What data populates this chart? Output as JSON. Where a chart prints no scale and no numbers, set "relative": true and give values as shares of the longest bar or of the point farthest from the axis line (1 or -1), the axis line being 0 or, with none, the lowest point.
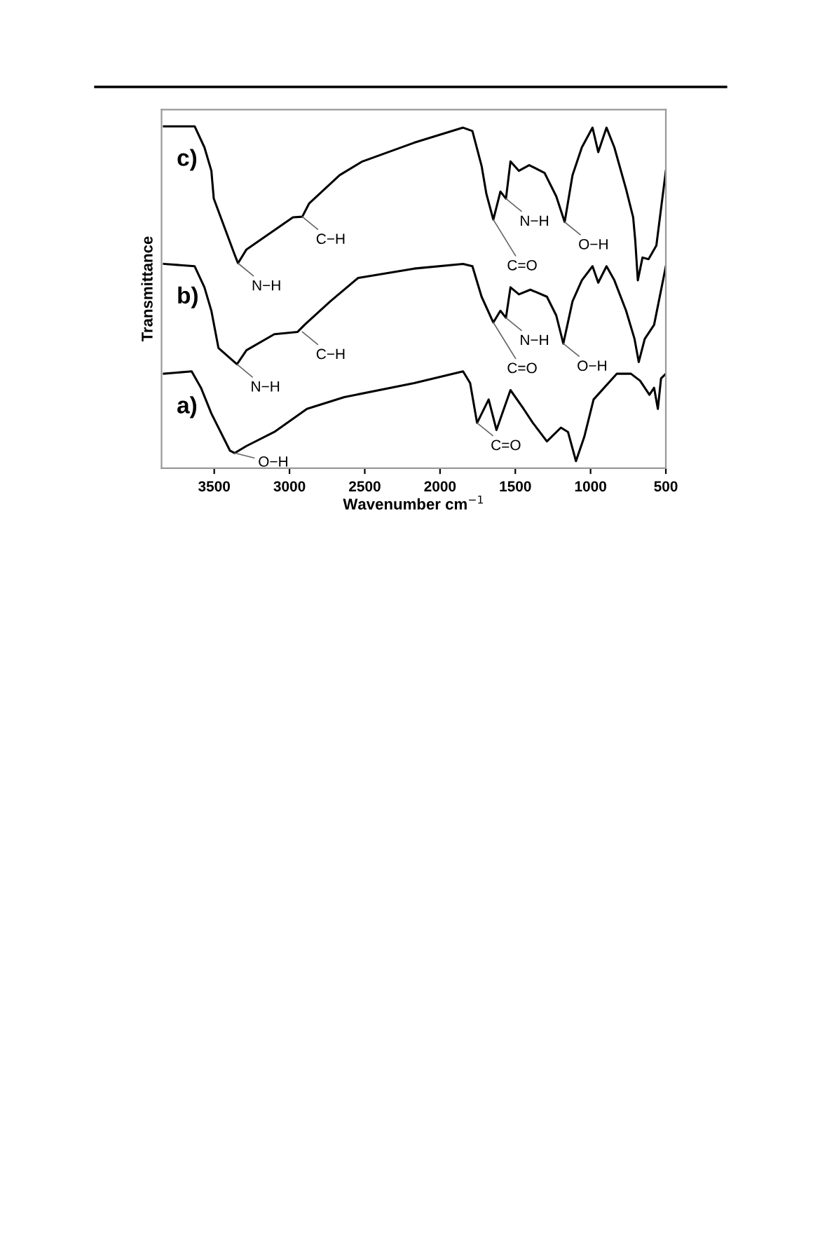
{
  "chart_data": {
    "type": "line",
    "relative": true,
    "xlabel": "Wavenumber cm$^{−1}$",
    "ylabel": "Transmittance",
    "xlim": [
      3850,
      500
    ],
    "xticks": [
      3500,
      3000,
      2500,
      2000,
      1500,
      1000,
      500
    ],
    "grid": false,
    "legend": false,
    "marker": "none",
    "line_style": "solid",
    "series": [
      {
        "name": "a)",
        "color": "#000000",
        "x": [
          3834,
          3650,
          3588,
          3519,
          3395,
          3364,
          3286,
          3101,
          2884,
          2636,
          2172,
          1847,
          1800,
          1754,
          1677,
          1625,
          1532,
          1445,
          1383,
          1290,
          1197,
          1150,
          1097,
          1042,
          980,
          825,
          732,
          671,
          609,
          578,
          553,
          532,
          500
        ],
        "values": [
          0.261,
          0.268,
          0.219,
          0.142,
          0.031,
          0.024,
          0.045,
          0.087,
          0.156,
          0.191,
          0.233,
          0.268,
          0.233,
          0.114,
          0.184,
          0.093,
          0.212,
          0.156,
          0.114,
          0.059,
          0.1,
          0.087,
          0.0,
          0.072,
          0.184,
          0.261,
          0.261,
          0.24,
          0.198,
          0.219,
          0.156,
          0.247,
          0.261
        ]
      },
      {
        "name": "b)",
        "color": "#000000",
        "x": [
          3834,
          3630,
          3565,
          3519,
          3472,
          3349,
          3286,
          3101,
          2946,
          2900,
          2729,
          2544,
          2172,
          1847,
          1785,
          1724,
          1646,
          1599,
          1562,
          1532,
          1476,
          1400,
          1290,
          1228,
          1181,
          1120,
          1058,
          987,
          949,
          894,
          842,
          764,
          708,
          680,
          640,
          578,
          500
        ],
        "values": [
          0.589,
          0.582,
          0.519,
          0.449,
          0.338,
          0.289,
          0.331,
          0.379,
          0.386,
          0.407,
          0.477,
          0.547,
          0.575,
          0.589,
          0.582,
          0.491,
          0.414,
          0.449,
          0.428,
          0.519,
          0.498,
          0.512,
          0.491,
          0.435,
          0.351,
          0.477,
          0.54,
          0.582,
          0.533,
          0.582,
          0.54,
          0.449,
          0.365,
          0.296,
          0.365,
          0.407,
          0.582
        ]
      },
      {
        "name": "c)",
        "color": "#000000",
        "x": [
          3834,
          3630,
          3565,
          3519,
          3503,
          3364,
          3342,
          3286,
          3224,
          2977,
          2915,
          2869,
          2667,
          2516,
          2172,
          1847,
          1785,
          1724,
          1692,
          1646,
          1599,
          1562,
          1532,
          1476,
          1408,
          1306,
          1228,
          1172,
          1120,
          1058,
          987,
          949,
          894,
          842,
          764,
          717,
          703,
          686,
          655,
          615,
          563,
          500
        ],
        "values": [
          1.0,
          1.0,
          0.937,
          0.867,
          0.784,
          0.616,
          0.591,
          0.632,
          0.651,
          0.728,
          0.73,
          0.77,
          0.854,
          0.895,
          0.951,
          0.996,
          0.986,
          0.882,
          0.798,
          0.721,
          0.805,
          0.784,
          0.895,
          0.867,
          0.884,
          0.861,
          0.791,
          0.714,
          0.854,
          0.937,
          0.996,
          0.923,
          0.996,
          0.937,
          0.812,
          0.728,
          0.658,
          0.54,
          0.608,
          0.603,
          0.644,
          0.867
        ]
      }
    ],
    "annotations": [
      {
        "text": "O−H",
        "x": 3364,
        "y": 0.024
      },
      {
        "text": "C=O",
        "x": 1754,
        "y": 0.114
      },
      {
        "text": "N−H",
        "x": 3349,
        "y": 0.289
      },
      {
        "text": "C−H",
        "x": 2915,
        "y": 0.386
      },
      {
        "text": "C=O",
        "x": 1646,
        "y": 0.414
      },
      {
        "text": "N−H",
        "x": 1562,
        "y": 0.428
      },
      {
        "text": "O−H",
        "x": 1181,
        "y": 0.351
      },
      {
        "text": "N−H",
        "x": 3342,
        "y": 0.591
      },
      {
        "text": "C−H",
        "x": 2915,
        "y": 0.73
      },
      {
        "text": "C=O",
        "x": 1646,
        "y": 0.721
      },
      {
        "text": "N−H",
        "x": 1562,
        "y": 0.784
      },
      {
        "text": "O−H",
        "x": 1172,
        "y": 0.714
      }
    ]
  }
}
